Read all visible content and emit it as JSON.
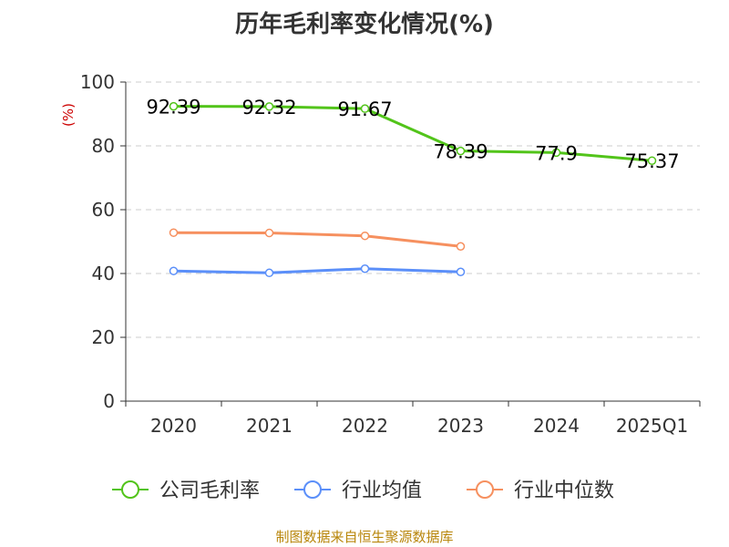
{
  "title": "历年毛利率变化情况(%)",
  "source": "制图数据来自恒生聚源数据库",
  "chart_data": {
    "type": "line",
    "title": "历年毛利率变化情况(%)",
    "ylabel": "(%)",
    "xlabel": "",
    "categories": [
      "2020",
      "2021",
      "2022",
      "2023",
      "2024",
      "2025Q1"
    ],
    "ylim": [
      0,
      100
    ],
    "yticks": [
      0,
      20,
      40,
      60,
      80,
      100
    ],
    "grid": "horizontal dashed",
    "legend_position": "bottom",
    "series": [
      {
        "name": "公司毛利率",
        "color": "#52c41a",
        "values": [
          92.39,
          92.32,
          91.67,
          78.39,
          77.9,
          75.37
        ],
        "labels": [
          "92.39",
          "92.32",
          "91.67",
          "78.39",
          "77.9",
          "75.37"
        ]
      },
      {
        "name": "行业均值",
        "color": "#5b8ff9",
        "values": [
          40.8,
          40.2,
          41.5,
          40.5,
          null,
          null
        ]
      },
      {
        "name": "行业中位数",
        "color": "#f6905f",
        "values": [
          52.8,
          52.7,
          51.8,
          48.5,
          null,
          null
        ]
      }
    ]
  }
}
